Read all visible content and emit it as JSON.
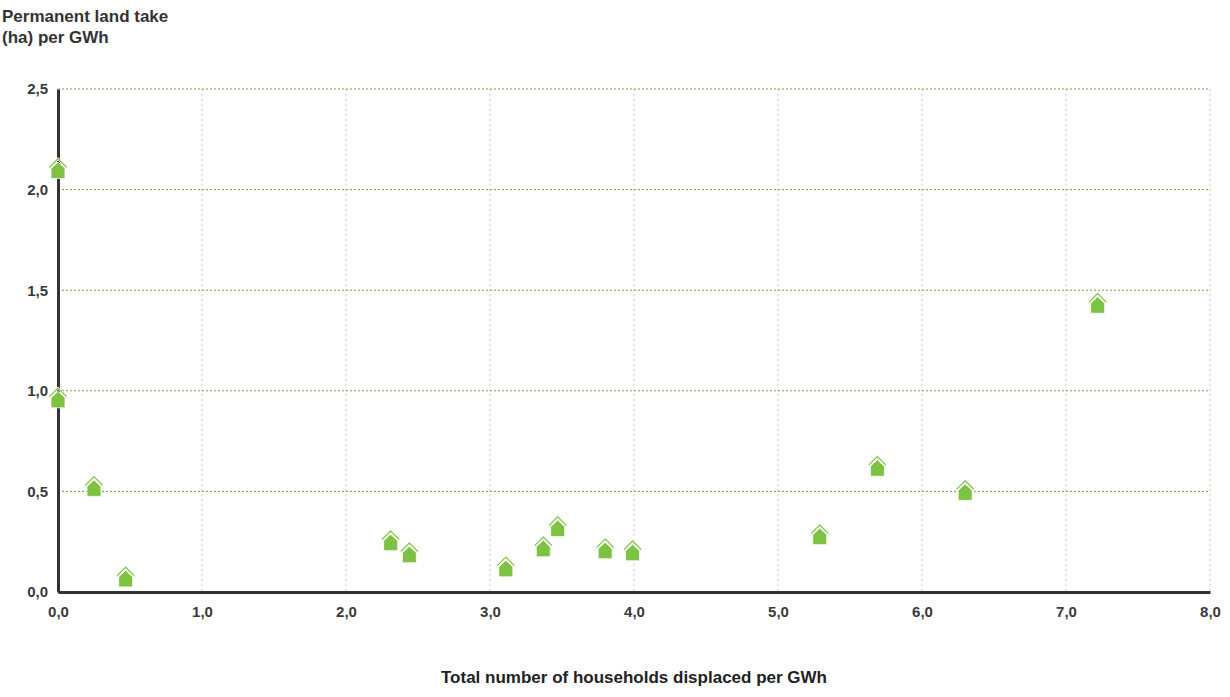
{
  "chart_data": {
    "type": "scatter",
    "y_label": "Permanent land take (ha) per GWh",
    "x_label": "Total number of households displaced per GWh",
    "x": [
      0.0,
      0.0,
      0.25,
      0.47,
      2.31,
      2.44,
      3.11,
      3.37,
      3.47,
      3.8,
      3.99,
      5.29,
      5.69,
      6.3,
      7.22
    ],
    "values": [
      2.1,
      0.96,
      0.52,
      0.07,
      0.25,
      0.19,
      0.12,
      0.22,
      0.32,
      0.21,
      0.2,
      0.28,
      0.62,
      0.5,
      1.43
    ],
    "color": "#7dc242",
    "marker": "house",
    "grid": true,
    "xlim": [
      0,
      8
    ],
    "ylim": [
      0,
      2.5
    ],
    "xticks": [
      {
        "value": 0,
        "label": "0,0"
      },
      {
        "value": 1,
        "label": "1,0"
      },
      {
        "value": 2,
        "label": "2,0"
      },
      {
        "value": 3,
        "label": "3,0"
      },
      {
        "value": 4,
        "label": "4,0"
      },
      {
        "value": 5,
        "label": "5,0"
      },
      {
        "value": 6,
        "label": "6,0"
      },
      {
        "value": 7,
        "label": "7,0"
      },
      {
        "value": 8,
        "label": "8,0"
      }
    ],
    "yticks": [
      {
        "value": 0,
        "label": "0,0"
      },
      {
        "value": 0.5,
        "label": "0,5"
      },
      {
        "value": 1,
        "label": "1,0"
      },
      {
        "value": 1.5,
        "label": "1,5"
      },
      {
        "value": 2,
        "label": "2,0"
      },
      {
        "value": 2.5,
        "label": "2,5"
      }
    ]
  }
}
